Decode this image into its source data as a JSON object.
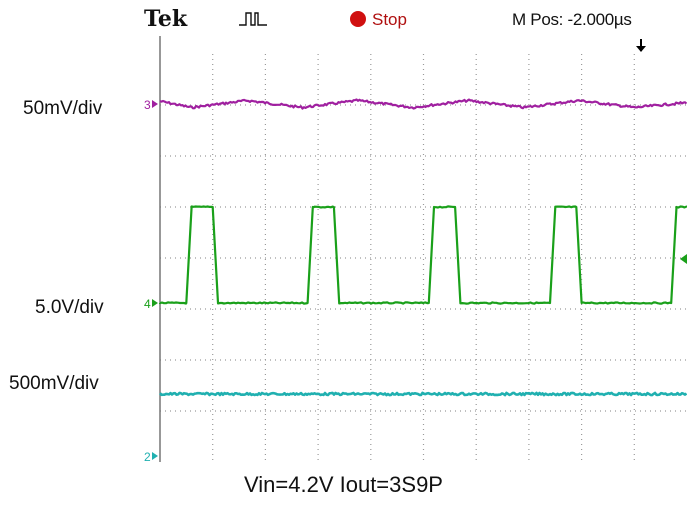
{
  "header": {
    "brand": "Tek",
    "trigger_icon": "pulse-trigger-icon",
    "run_state": "Stop",
    "horizontal_position": "M Pos: -2.000µs",
    "colors": {
      "stop": "#d01010"
    }
  },
  "labels": {
    "ch3_scale": "50mV/div",
    "ch4_scale": "5.0V/div",
    "ch2_scale": "500mV/div",
    "caption": "Vin=4.2V Iout=3S9P"
  },
  "chart_data": {
    "type": "line",
    "title": "",
    "xlabel": "",
    "ylabel": "",
    "grid": true,
    "x_divisions": 10,
    "y_divisions": 8,
    "xlim": [
      0,
      10
    ],
    "x_unit": "div",
    "series": [
      {
        "marker": "3",
        "color": "#a020a0",
        "scale": "50mV/div",
        "ylim": [
          -1,
          1
        ],
        "x": [
          0,
          0.6,
          1.65,
          2.7,
          3.75,
          4.8,
          5.85,
          6.9,
          7.95,
          9.0,
          10
        ],
        "values": [
          0.2,
          -0.25,
          0.25,
          -0.25,
          0.25,
          -0.25,
          0.25,
          -0.25,
          0.25,
          -0.25,
          0.1
        ]
      },
      {
        "marker": "4",
        "color": "#1aa01a",
        "scale": "5.0V/div",
        "ylim": [
          0,
          1
        ],
        "x": [
          0,
          0.5,
          0.6,
          1.0,
          1.1,
          2.8,
          2.9,
          3.3,
          3.4,
          5.1,
          5.2,
          5.6,
          5.7,
          7.4,
          7.5,
          7.9,
          8.0,
          9.7,
          9.8,
          10
        ],
        "values": [
          0,
          0,
          1,
          1,
          0,
          0,
          1,
          1,
          0,
          0,
          1,
          1,
          0,
          0,
          1,
          1,
          0,
          0,
          1,
          1
        ]
      },
      {
        "marker": "",
        "color": "#20b0b0",
        "scale": "500mV/div",
        "ylim": [
          -1,
          1
        ],
        "x": [
          0,
          10
        ],
        "values": [
          0,
          0
        ]
      }
    ],
    "ground_markers": [
      "3",
      "4",
      "2"
    ]
  }
}
